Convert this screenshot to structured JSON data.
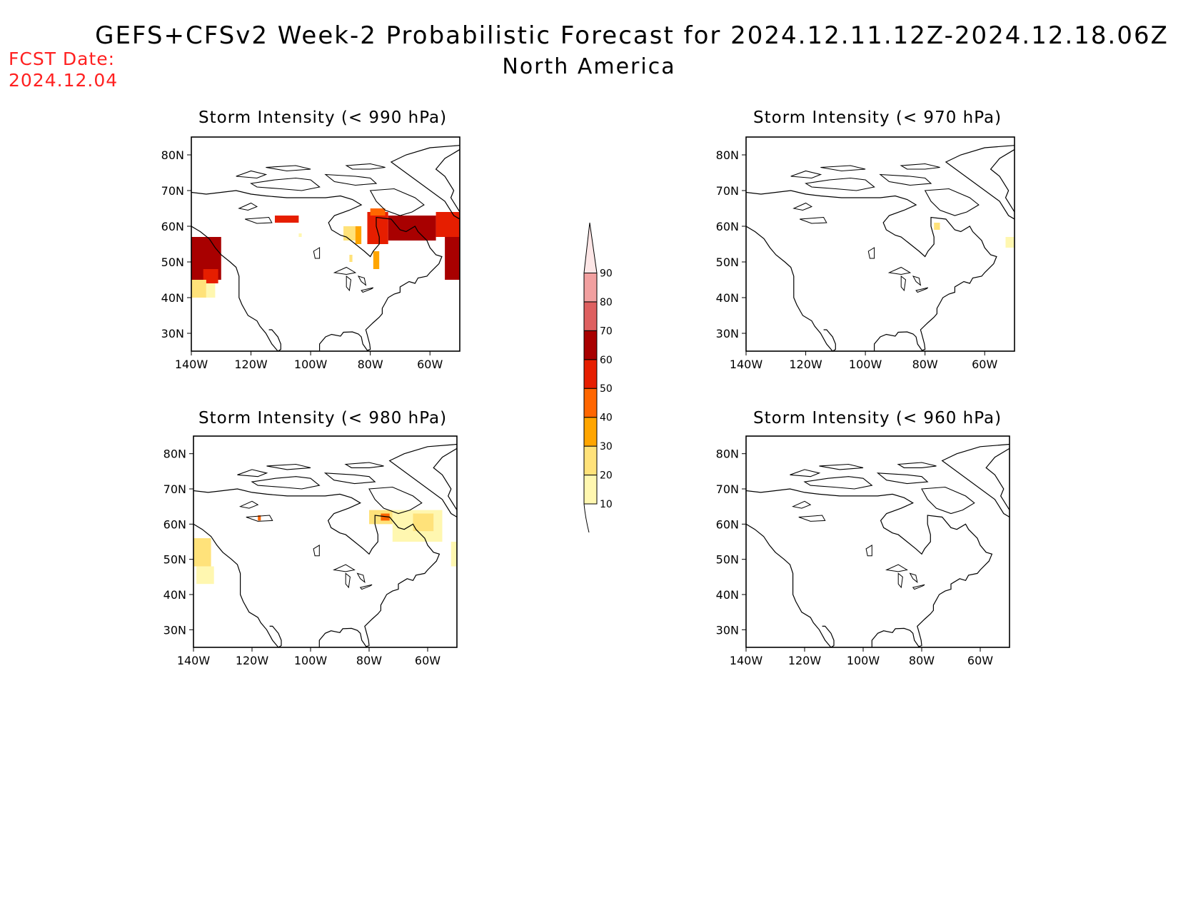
{
  "header": {
    "title": "GEFS+CFSv2 Week-2 Probabilistic Forecast for 2024.12.11.12Z-2024.12.18.06Z",
    "subtitle": "North America",
    "fcst_label": "FCST Date:",
    "fcst_date": "2024.12.04"
  },
  "panels": [
    {
      "title": "Storm Intensity (< 990 hPa)"
    },
    {
      "title": "Storm Intensity (< 970 hPa)"
    },
    {
      "title": "Storm Intensity (< 980 hPa)"
    },
    {
      "title": "Storm Intensity (< 960 hPa)"
    }
  ],
  "axes": {
    "lat_ticks": [
      "80N",
      "70N",
      "60N",
      "50N",
      "40N",
      "30N"
    ],
    "lon_ticks": [
      "140W",
      "120W",
      "100W",
      "80W",
      "60W"
    ]
  },
  "colorbar": {
    "levels": [
      "10",
      "20",
      "30",
      "40",
      "50",
      "60",
      "70",
      "80",
      "90"
    ],
    "colors": [
      "#fff7b0",
      "#ffe27a",
      "#ffa500",
      "#ff6600",
      "#e61e00",
      "#a80000",
      "#de6060",
      "#f2a0a0",
      "#fde6e6"
    ]
  }
}
